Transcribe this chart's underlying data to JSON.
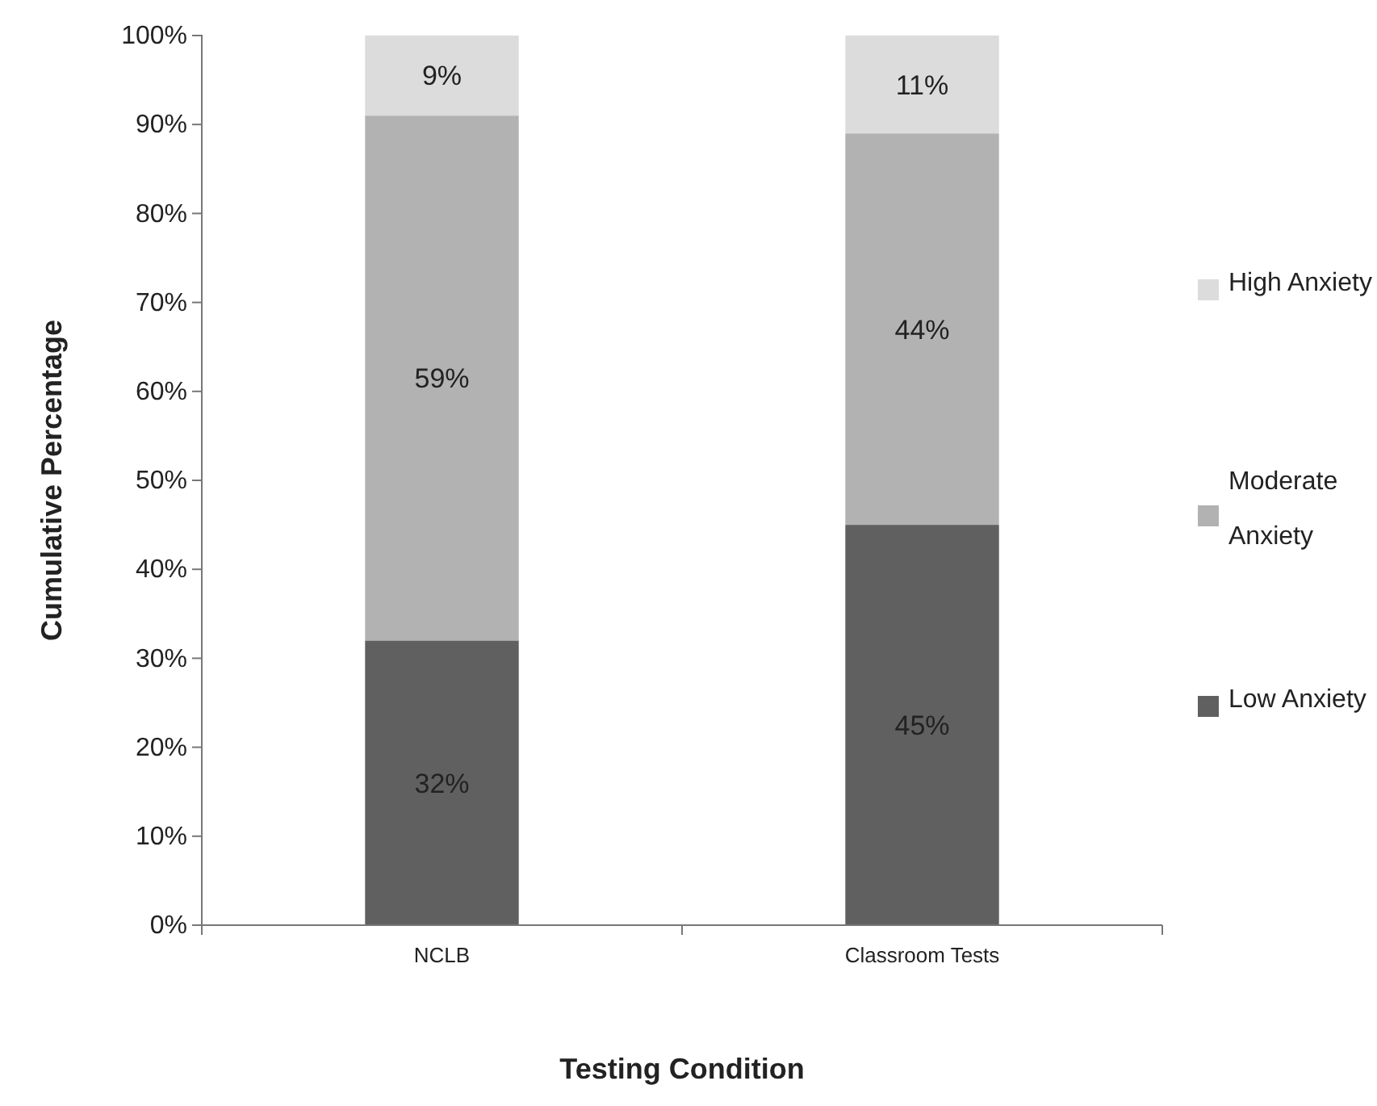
{
  "chart_data": {
    "type": "bar",
    "stacked": true,
    "categories": [
      "NCLB",
      "Classroom Tests"
    ],
    "series": [
      {
        "name": "Low Anxiety",
        "color": "#606060",
        "values": [
          32,
          45
        ],
        "value_labels": [
          "32%",
          "45%"
        ]
      },
      {
        "name": "Moderate Anxiety",
        "color": "#b2b2b2",
        "values": [
          59,
          44
        ],
        "value_labels": [
          "59%",
          "44%"
        ]
      },
      {
        "name": "High Anxiety",
        "color": "#dcdcdc",
        "values": [
          9,
          11
        ],
        "value_labels": [
          "9%",
          "11%"
        ]
      }
    ],
    "xlabel": "Testing Condition",
    "ylabel": "Cumulative Percentage",
    "ylim": [
      0,
      100
    ],
    "yticks": [
      {
        "value": 0,
        "label": "0%"
      },
      {
        "value": 10,
        "label": "10%"
      },
      {
        "value": 20,
        "label": "20%"
      },
      {
        "value": 30,
        "label": "30%"
      },
      {
        "value": 40,
        "label": "40%"
      },
      {
        "value": 50,
        "label": "50%"
      },
      {
        "value": 60,
        "label": "60%"
      },
      {
        "value": 70,
        "label": "70%"
      },
      {
        "value": 80,
        "label": "80%"
      },
      {
        "value": 90,
        "label": "90%"
      },
      {
        "value": 100,
        "label": "100%"
      }
    ],
    "grid": false,
    "legend": "right"
  }
}
